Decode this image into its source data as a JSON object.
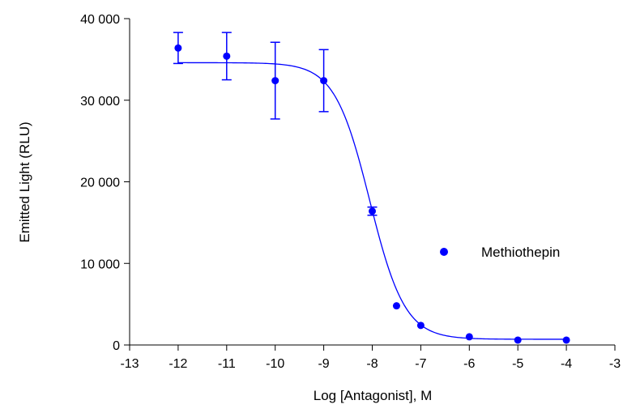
{
  "chart_data": {
    "type": "scatter",
    "xlabel": "Log [Antagonist], M",
    "ylabel": "Emitted Light (RLU)",
    "xlim": [
      -13,
      -3
    ],
    "ylim": [
      0,
      40000
    ],
    "xticks": [
      -13,
      -12,
      -11,
      -10,
      -9,
      -8,
      -7,
      -6,
      -5,
      -4,
      -3
    ],
    "yticks": [
      0,
      10000,
      20000,
      30000,
      40000
    ],
    "xtick_labels": [
      "-13",
      "-12",
      "-11",
      "-10",
      "-9",
      "-8",
      "-7",
      "-6",
      "-5",
      "-4",
      "-3"
    ],
    "ytick_labels": [
      "0",
      "10 000",
      "20 000",
      "30 000",
      "40 000"
    ],
    "grid": false,
    "legend_position": "right",
    "color": "#0000ff",
    "series": [
      {
        "name": "Methiothepin",
        "points": [
          {
            "x": -12,
            "y": 36400,
            "err": 1900
          },
          {
            "x": -11,
            "y": 35400,
            "err": 2900
          },
          {
            "x": -10,
            "y": 32400,
            "err": 4700
          },
          {
            "x": -9,
            "y": 32400,
            "err": 3800
          },
          {
            "x": -8,
            "y": 16400,
            "err": 500
          },
          {
            "x": -7.5,
            "y": 4800,
            "err": 0
          },
          {
            "x": -7,
            "y": 2400,
            "err": 0
          },
          {
            "x": -6,
            "y": 1000,
            "err": 0
          },
          {
            "x": -5,
            "y": 600,
            "err": 0
          },
          {
            "x": -4,
            "y": 600,
            "err": 0
          }
        ],
        "fit": {
          "model": "sigmoidal dose-response",
          "top": 34600,
          "bottom": 700,
          "logIC50": -8.05,
          "hill": -1.2
        }
      }
    ]
  }
}
